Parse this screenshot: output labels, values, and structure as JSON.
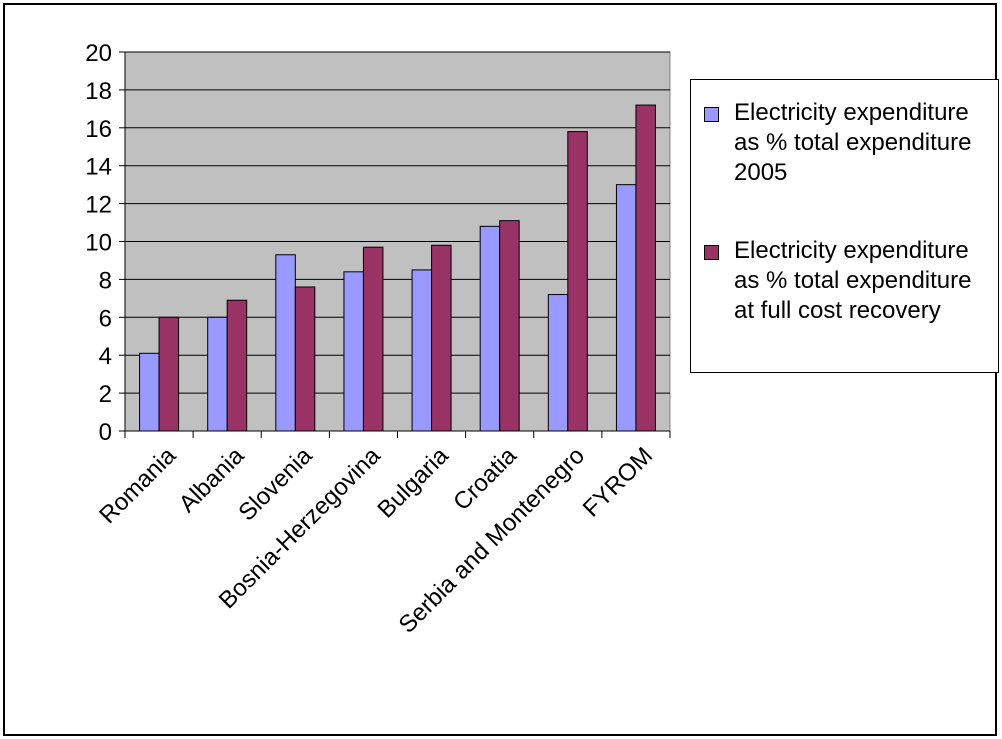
{
  "chart_data": {
    "type": "bar",
    "categories": [
      "Romania",
      "Albania",
      "Slovenia",
      "Bosnia-Herzegovina",
      "Bulgaria",
      "Croatia",
      "Serbia and Montenegro",
      "FYROM"
    ],
    "series": [
      {
        "name": "Electricity expenditure as % total expenditure 2005",
        "color": "#9999FF",
        "values": [
          4.1,
          6.0,
          9.3,
          8.4,
          8.5,
          10.8,
          7.2,
          13.0
        ]
      },
      {
        "name": "Electricity expenditure as % total expenditure at full cost recovery",
        "color": "#993366",
        "values": [
          6.0,
          6.9,
          7.6,
          9.7,
          9.8,
          11.1,
          15.8,
          17.2
        ]
      }
    ],
    "ylim": [
      0,
      20
    ],
    "yticks": [
      0,
      2,
      4,
      6,
      8,
      10,
      12,
      14,
      16,
      18,
      20
    ],
    "plot_background": "#C0C0C0",
    "grid": true,
    "legend_position": "right"
  }
}
